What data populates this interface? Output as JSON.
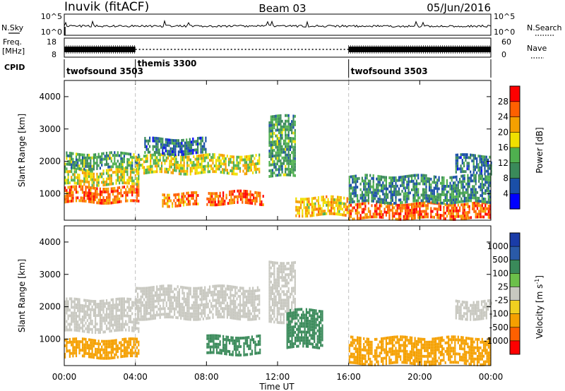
{
  "header": {
    "station": "Inuvik (fitACF)",
    "beam": "Beam 03",
    "date": "05/Jun/2016"
  },
  "panel_labels": {
    "nsky": "N.Sky",
    "freq": "Freq.",
    "freq_unit": "[MHz]",
    "cpid": "CPID",
    "nsearch": "N.Search",
    "nave": "Nave"
  },
  "scales": {
    "noise_ticks": [
      "10^5",
      "10^0"
    ],
    "freq_ticks": [
      "18",
      "8"
    ],
    "nave_ticks": [
      "60",
      "0"
    ]
  },
  "cpid_segments": [
    {
      "label": "twofsound 3503",
      "start_hour": 0,
      "end_hour": 4
    },
    {
      "label": "themis 3300",
      "start_hour": 4,
      "end_hour": 16
    },
    {
      "label": "twofsound 3503",
      "start_hour": 16,
      "end_hour": 24
    }
  ],
  "colors": {
    "power_scale": [
      "#0000ff",
      "#1a4fa8",
      "#3a8a5a",
      "#4fb04f",
      "#f0e000",
      "#f5a000",
      "#ff6000",
      "#ff0000"
    ],
    "velocity_scale": [
      "#1a3ca8",
      "#2a5aa8",
      "#3a8a5a",
      "#6cc04a",
      "#c8c8c0",
      "#f0d020",
      "#f5a000",
      "#ff6000",
      "#ff0000"
    ],
    "gridline": "#c0c0c0"
  },
  "chart_data": [
    {
      "type": "heatmap",
      "name": "power",
      "xlabel": "",
      "ylabel": "Slant Range [km]",
      "xlim": [
        0,
        24
      ],
      "ylim": [
        180,
        4500
      ],
      "x_ticks": [
        "00:00",
        "04:00",
        "08:00",
        "12:00",
        "16:00",
        "20:00",
        "00:00"
      ],
      "y_ticks": [
        "1000",
        "2000",
        "3000",
        "4000"
      ],
      "colorbar": {
        "label": "Power [dB]",
        "ticks": [
          "4",
          "8",
          "12",
          "16",
          "20",
          "24",
          "28"
        ],
        "range": [
          0,
          32
        ]
      },
      "bands": [
        {
          "start": 0.0,
          "end": 4.2,
          "range_km": [
            700,
            1150
          ],
          "value": 26
        },
        {
          "start": 0.0,
          "end": 4.2,
          "range_km": [
            1250,
            1700
          ],
          "value": 18
        },
        {
          "start": 0.0,
          "end": 4.2,
          "range_km": [
            1750,
            2200
          ],
          "value": 12
        },
        {
          "start": 4.0,
          "end": 11.0,
          "range_km": [
            1600,
            2200
          ],
          "value": 18
        },
        {
          "start": 4.5,
          "end": 8.0,
          "range_km": [
            2200,
            2700
          ],
          "value": 8
        },
        {
          "start": 5.5,
          "end": 7.5,
          "range_km": [
            600,
            1000
          ],
          "value": 24
        },
        {
          "start": 8.0,
          "end": 11.2,
          "range_km": [
            650,
            1050
          ],
          "value": 26
        },
        {
          "start": 11.5,
          "end": 13.0,
          "range_km": [
            1500,
            3400
          ],
          "value": 12
        },
        {
          "start": 13.0,
          "end": 16.0,
          "range_km": [
            300,
            900
          ],
          "value": 20
        },
        {
          "start": 16.0,
          "end": 24.0,
          "range_km": [
            200,
            650
          ],
          "value": 26
        },
        {
          "start": 16.0,
          "end": 24.0,
          "range_km": [
            700,
            1500
          ],
          "value": 10
        },
        {
          "start": 22.0,
          "end": 24.0,
          "range_km": [
            1600,
            2200
          ],
          "value": 8
        }
      ]
    },
    {
      "type": "heatmap",
      "name": "velocity",
      "xlabel": "Time UT",
      "ylabel": "Slant Range [km]",
      "xlim": [
        0,
        24
      ],
      "ylim": [
        180,
        4500
      ],
      "x_ticks": [
        "00:00",
        "04:00",
        "08:00",
        "12:00",
        "16:00",
        "20:00",
        "00:00"
      ],
      "y_ticks": [
        "1000",
        "2000",
        "3000",
        "4000"
      ],
      "colorbar": {
        "label": "Velocity [m s",
        "label_sup": "-1",
        "label_end": "]",
        "ticks": [
          "1000",
          "500",
          "100",
          "25",
          "-25",
          "-100",
          "-500",
          "-1000"
        ]
      },
      "bands": [
        {
          "start": 0.0,
          "end": 4.2,
          "range_km": [
            400,
            1000
          ],
          "value": -100
        },
        {
          "start": 0.0,
          "end": 4.2,
          "range_km": [
            1200,
            2200
          ],
          "value": 0
        },
        {
          "start": 4.0,
          "end": 11.0,
          "range_km": [
            1600,
            2600
          ],
          "value": 0
        },
        {
          "start": 8.0,
          "end": 11.0,
          "range_km": [
            500,
            1100
          ],
          "value": 100
        },
        {
          "start": 11.5,
          "end": 13.0,
          "range_km": [
            1500,
            3400
          ],
          "value": 0
        },
        {
          "start": 12.5,
          "end": 14.5,
          "range_km": [
            700,
            1900
          ],
          "value": 100
        },
        {
          "start": 16.0,
          "end": 24.0,
          "range_km": [
            200,
            1000
          ],
          "value": -100
        },
        {
          "start": 22.0,
          "end": 24.0,
          "range_km": [
            1600,
            2200
          ],
          "value": 0
        }
      ]
    }
  ]
}
